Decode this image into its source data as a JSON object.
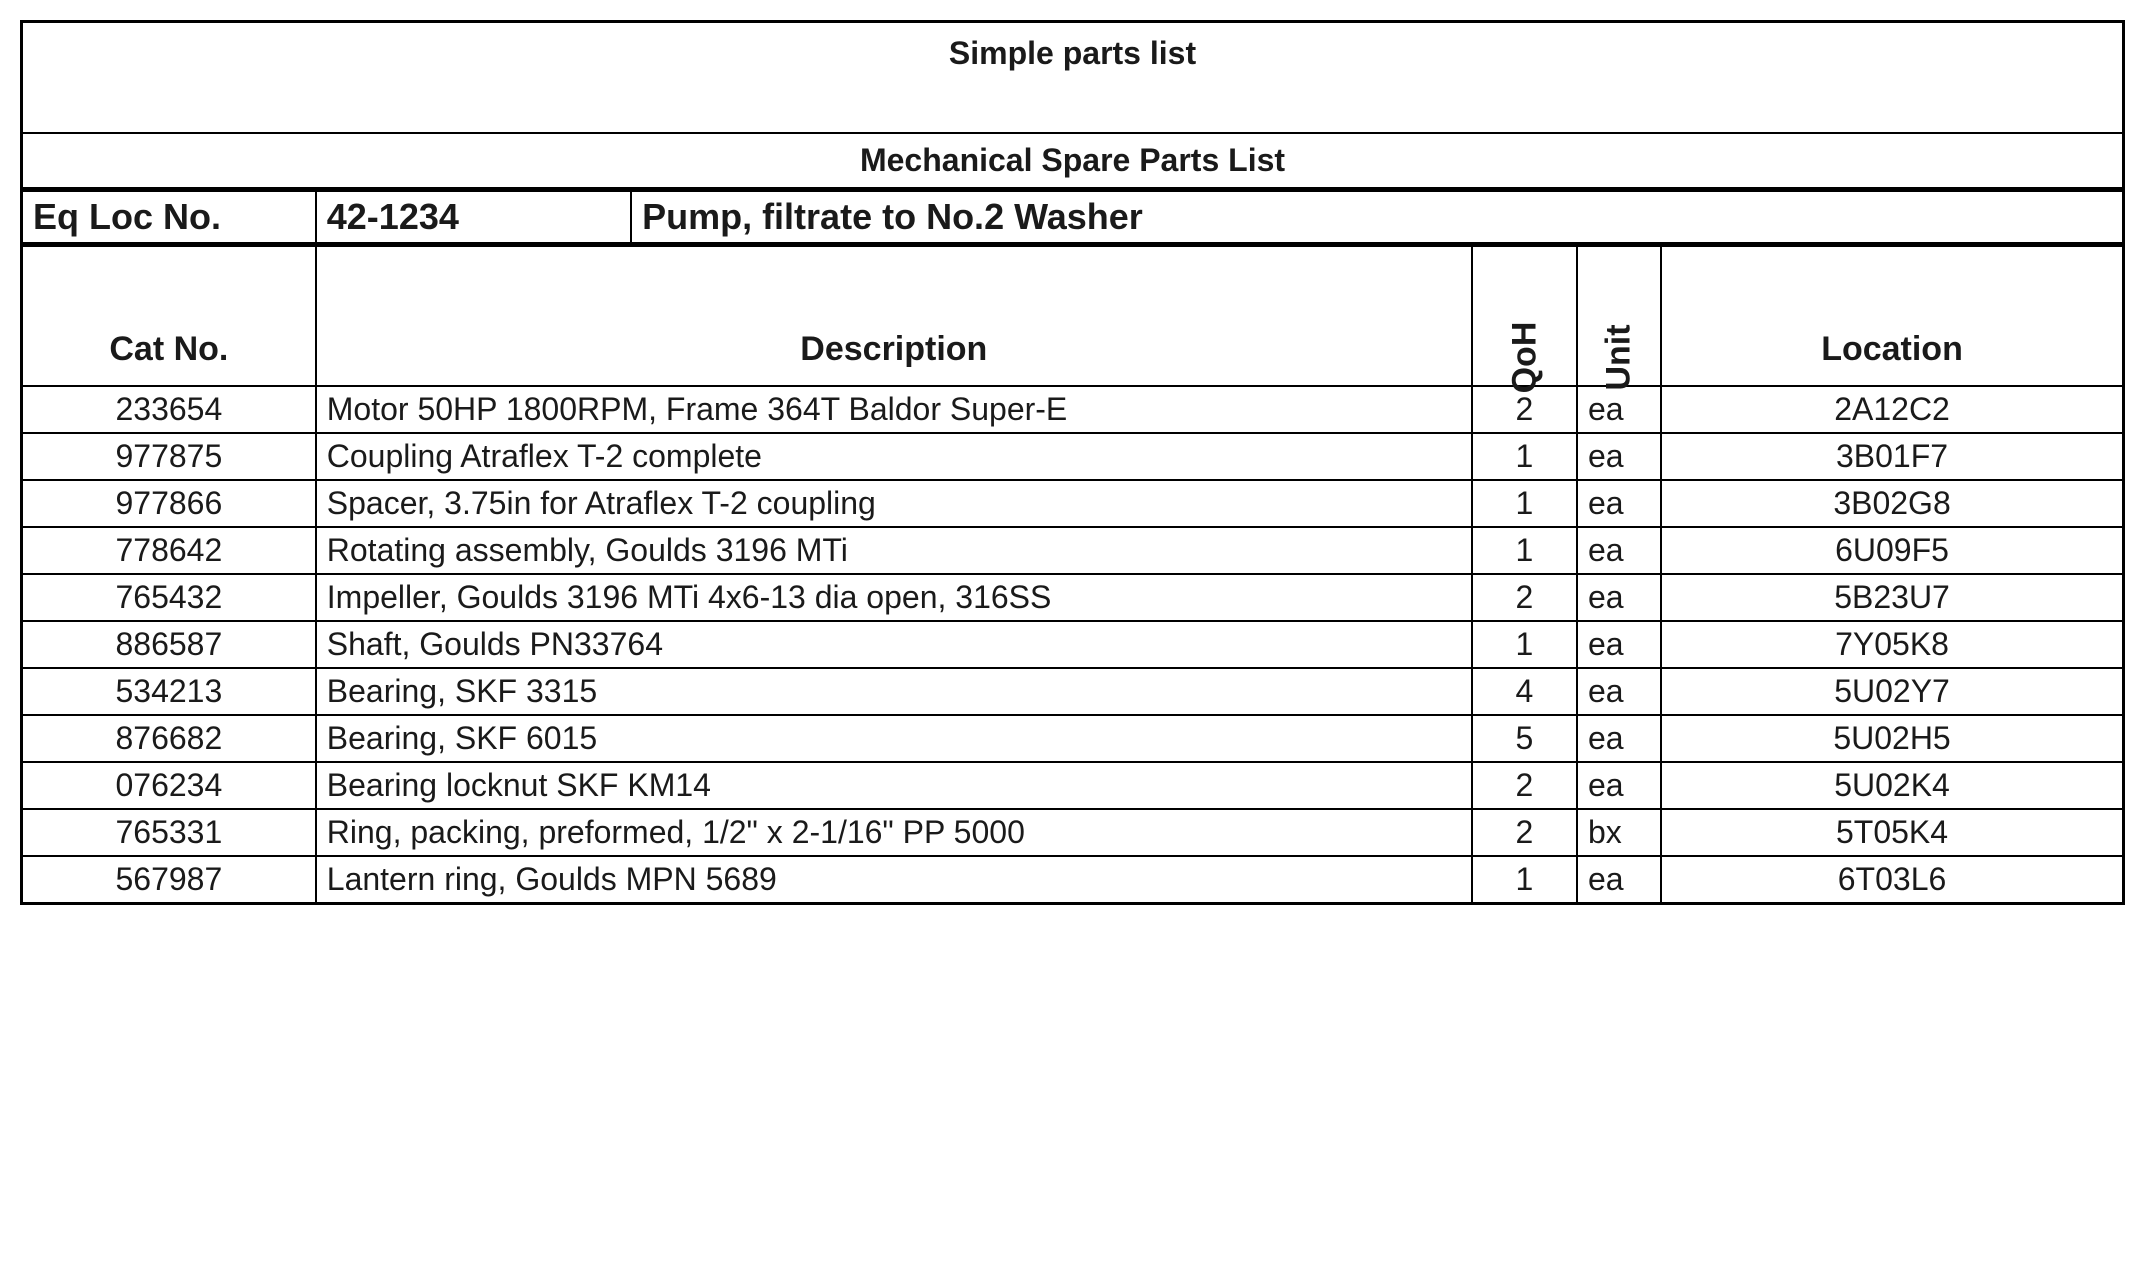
{
  "title": "Simple parts list",
  "subtitle": "Mechanical Spare Parts List",
  "eq_loc_label": "Eq Loc  No.",
  "eq_loc_no": "42-1234",
  "eq_desc": "Pump, filtrate to No.2 Washer",
  "columns": {
    "catno": "Cat No.",
    "desc": "Description",
    "qoh": "QoH",
    "unit": "Unit",
    "loc": "Location"
  },
  "rows": [
    {
      "catno": "233654",
      "desc": "Motor 50HP 1800RPM, Frame 364T Baldor Super-E",
      "qoh": "2",
      "unit": "ea",
      "loc": "2A12C2"
    },
    {
      "catno": "977875",
      "desc": "Coupling Atraflex T-2 complete",
      "qoh": "1",
      "unit": "ea",
      "loc": "3B01F7"
    },
    {
      "catno": "977866",
      "desc": "Spacer, 3.75in for Atraflex T-2 coupling",
      "qoh": "1",
      "unit": "ea",
      "loc": "3B02G8"
    },
    {
      "catno": "778642",
      "desc": "Rotating assembly, Goulds 3196 MTi",
      "qoh": "1",
      "unit": "ea",
      "loc": "6U09F5"
    },
    {
      "catno": "765432",
      "desc": "Impeller, Goulds 3196 MTi 4x6-13 dia open, 316SS",
      "qoh": "2",
      "unit": "ea",
      "loc": "5B23U7"
    },
    {
      "catno": "886587",
      "desc": "Shaft, Goulds PN33764",
      "qoh": "1",
      "unit": "ea",
      "loc": "7Y05K8"
    },
    {
      "catno": "534213",
      "desc": "Bearing, SKF 3315",
      "qoh": "4",
      "unit": "ea",
      "loc": "5U02Y7"
    },
    {
      "catno": "876682",
      "desc": "Bearing, SKF 6015",
      "qoh": "5",
      "unit": "ea",
      "loc": "5U02H5"
    },
    {
      "catno": "076234",
      "desc": "Bearing locknut SKF KM14",
      "qoh": "2",
      "unit": "ea",
      "loc": "5U02K4"
    },
    {
      "catno": "765331",
      "desc": "Ring, packing, preformed, 1/2\" x 2-1/16\" PP 5000",
      "qoh": "2",
      "unit": "bx",
      "loc": "5T05K4"
    },
    {
      "catno": "567987",
      "desc": "Lantern ring, Goulds MPN 5689",
      "qoh": "1",
      "unit": "ea",
      "loc": "6T03L6"
    }
  ]
}
